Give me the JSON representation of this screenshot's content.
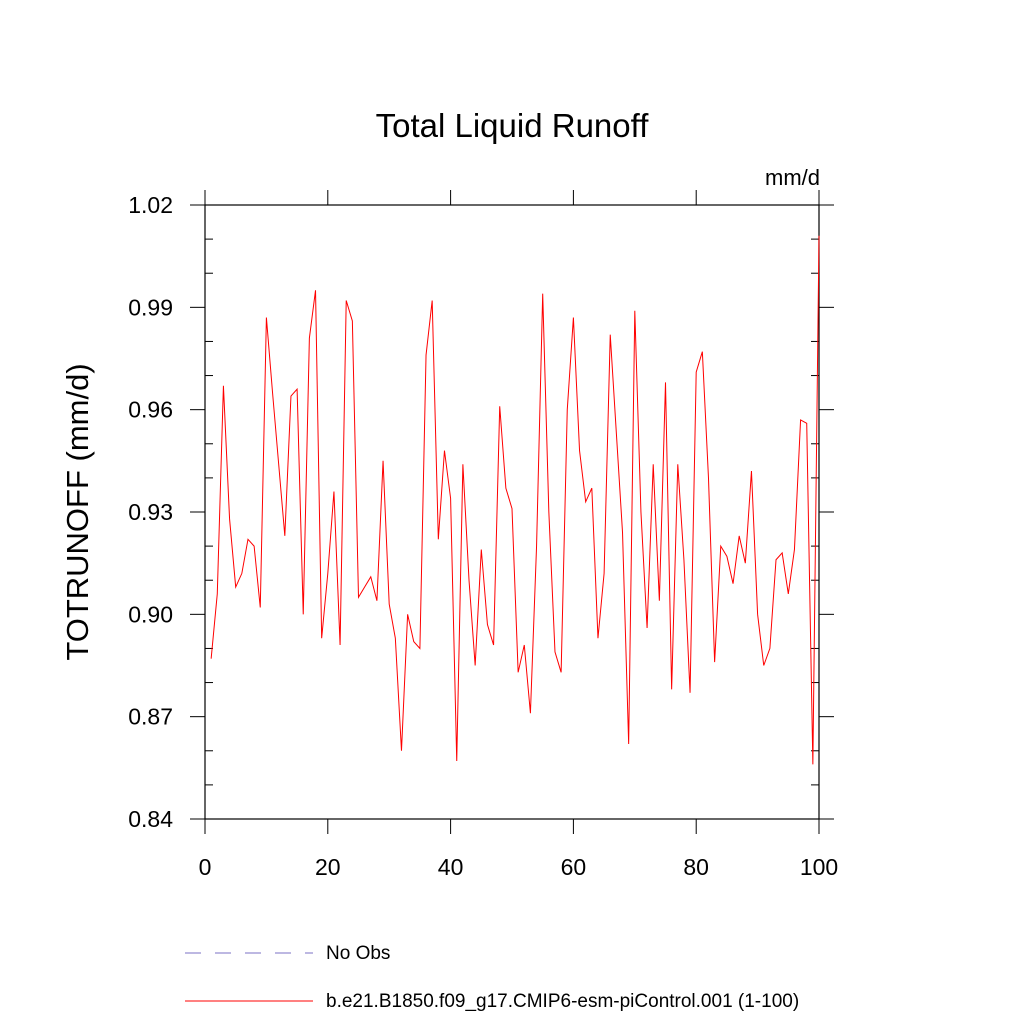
{
  "chart_data": {
    "type": "line",
    "title": "Total Liquid Runoff",
    "units": "mm/d",
    "ylabel": "TOTRUNOFF  (mm/d)",
    "xlabel": "",
    "xlim": [
      0,
      100
    ],
    "ylim": [
      0.84,
      1.02
    ],
    "x_ticks": [
      0,
      20,
      40,
      60,
      80,
      100
    ],
    "x_tick_labels": [
      "0",
      "20",
      "40",
      "60",
      "80",
      "100"
    ],
    "y_ticks": [
      0.84,
      0.87,
      0.9,
      0.93,
      0.96,
      0.99,
      1.02
    ],
    "y_tick_labels": [
      "0.84",
      "0.87",
      "0.90",
      "0.93",
      "0.96",
      "0.99",
      "1.02"
    ],
    "grid": false,
    "legend_position": "bottom",
    "series": [
      {
        "name": "No Obs",
        "color": "#7b72c6",
        "style": "dashed",
        "x": [],
        "y": []
      },
      {
        "name": "b.e21.B1850.f09_g17.CMIP6-esm-piControl.001 (1-100)",
        "color": "#ff0000",
        "style": "solid",
        "x": [
          1,
          2,
          3,
          4,
          5,
          6,
          7,
          8,
          9,
          10,
          11,
          12,
          13,
          14,
          15,
          16,
          17,
          18,
          19,
          20,
          21,
          22,
          23,
          24,
          25,
          26,
          27,
          28,
          29,
          30,
          31,
          32,
          33,
          34,
          35,
          36,
          37,
          38,
          39,
          40,
          41,
          42,
          43,
          44,
          45,
          46,
          47,
          48,
          49,
          50,
          51,
          52,
          53,
          54,
          55,
          56,
          57,
          58,
          59,
          60,
          61,
          62,
          63,
          64,
          65,
          66,
          67,
          68,
          69,
          70,
          71,
          72,
          73,
          74,
          75,
          76,
          77,
          78,
          79,
          80,
          81,
          82,
          83,
          84,
          85,
          86,
          87,
          88,
          89,
          90,
          91,
          92,
          93,
          94,
          95,
          96,
          97,
          98,
          99,
          100
        ],
        "y": [
          0.887,
          0.906,
          0.967,
          0.928,
          0.908,
          0.912,
          0.922,
          0.92,
          0.902,
          0.987,
          0.965,
          0.944,
          0.923,
          0.964,
          0.966,
          0.9,
          0.981,
          0.995,
          0.893,
          0.912,
          0.936,
          0.891,
          0.992,
          0.986,
          0.905,
          0.908,
          0.911,
          0.904,
          0.945,
          0.903,
          0.893,
          0.86,
          0.9,
          0.892,
          0.89,
          0.976,
          0.992,
          0.922,
          0.948,
          0.934,
          0.857,
          0.944,
          0.91,
          0.885,
          0.919,
          0.897,
          0.891,
          0.961,
          0.937,
          0.931,
          0.883,
          0.891,
          0.871,
          0.92,
          0.994,
          0.93,
          0.889,
          0.883,
          0.96,
          0.987,
          0.948,
          0.933,
          0.937,
          0.893,
          0.912,
          0.982,
          0.953,
          0.924,
          0.862,
          0.989,
          0.93,
          0.896,
          0.944,
          0.904,
          0.968,
          0.878,
          0.944,
          0.916,
          0.877,
          0.971,
          0.977,
          0.94,
          0.886,
          0.92,
          0.917,
          0.909,
          0.923,
          0.915,
          0.942,
          0.9,
          0.885,
          0.89,
          0.916,
          0.918,
          0.906,
          0.919,
          0.957,
          0.956,
          0.856,
          1.011
        ]
      }
    ]
  }
}
